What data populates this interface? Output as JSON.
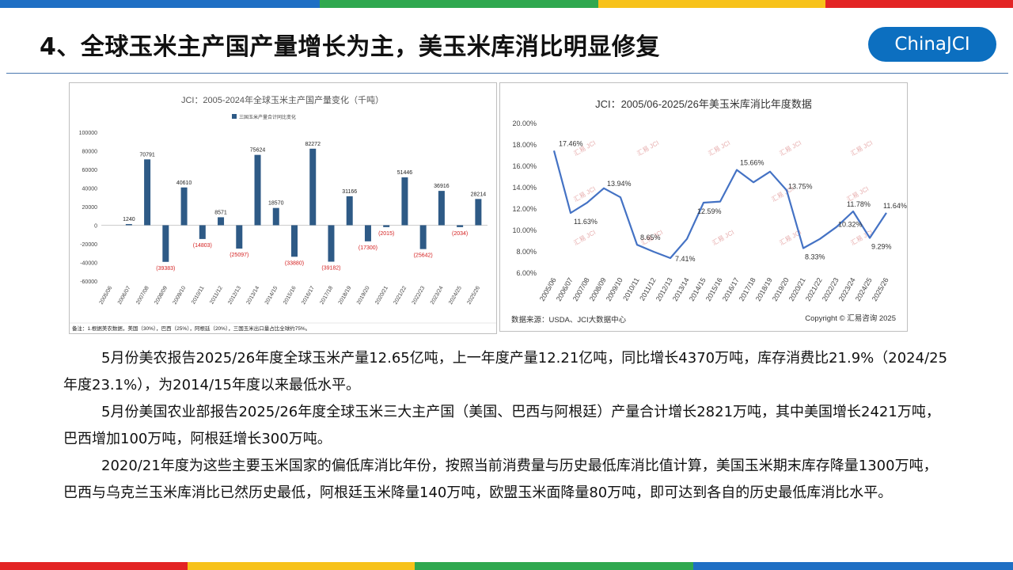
{
  "colors": {
    "strip_top": [
      "#1f6fc4",
      "#2fa84f",
      "#f7c21a",
      "#e32424"
    ],
    "strip_bottom": [
      "#e32424",
      "#f7c21a",
      "#2fa84f",
      "#1f6fc4"
    ],
    "bar": "#2e5a86",
    "line": "#4472c4",
    "negative_label": "#d42020",
    "brand": "#0c6fc0"
  },
  "header": {
    "title": "4、全球玉米主产国产量增长为主，美玉米库消比明显修复",
    "logo": "ChinaJCI"
  },
  "chart_data": [
    {
      "type": "bar",
      "title": "JCI：2005-2024年全球玉米主产国产量变化（千吨）",
      "legend": "三国玉米产量合计同比变化",
      "categories": [
        "2005/06",
        "2006/07",
        "2007/08",
        "2008/09",
        "2009/10",
        "2010/11",
        "2011/12",
        "2012/13",
        "2013/14",
        "2014/15",
        "2015/16",
        "2016/17",
        "2017/18",
        "2018/19",
        "2019/20",
        "2020/21",
        "2021/22",
        "2022/23",
        "2023/24",
        "2024/25",
        "2025/26"
      ],
      "values": [
        null,
        1240,
        70791,
        -39383,
        40610,
        -14803,
        8571,
        -25097,
        75624,
        18570,
        -33880,
        82272,
        -39182,
        31166,
        -17300,
        -2015,
        51446,
        -25642,
        36916,
        -2034,
        28214
      ],
      "data_labels": [
        "",
        "1240",
        "70791",
        "(39383)",
        "40610",
        "(14803)",
        "8571",
        "(25097)",
        "75624",
        "18570",
        "(33880)",
        "82272",
        "(39182)",
        "31166",
        "(17300)",
        "(2015)",
        "51446",
        "(25642)",
        "36916",
        "(2034)",
        "28214"
      ],
      "y_ticks": [
        "100000",
        "80000",
        "60000",
        "40000",
        "20000",
        "0",
        "-20000",
        "-40000",
        "-60000"
      ],
      "ylim": [
        -60000,
        100000
      ],
      "note": "备注：1.根据美农数据，美国（30%），巴西（25%），阿根廷（20%），三国玉米出口量占比全球约75%。"
    },
    {
      "type": "line",
      "title": "JCI：2005/06-2025/26年美玉米库消比年度数据",
      "categories": [
        "2005/06",
        "2006/07",
        "2007/08",
        "2008/09",
        "2009/10",
        "2010/11",
        "2011/12",
        "2012/13",
        "2013/14",
        "2014/15",
        "2015/16",
        "2016/17",
        "2017/18",
        "2018/19",
        "2019/20",
        "2020/21",
        "2021/22",
        "2022/23",
        "2023/24",
        "2024/25",
        "2025/26"
      ],
      "values": [
        17.46,
        11.63,
        12.6,
        13.94,
        13.1,
        8.65,
        8.0,
        7.41,
        9.2,
        12.59,
        12.7,
        15.66,
        14.5,
        15.5,
        13.75,
        8.33,
        9.2,
        10.32,
        11.78,
        9.29,
        11.64
      ],
      "point_labels": [
        {
          "index": 0,
          "text": "17.46%"
        },
        {
          "index": 1,
          "text": "11.63%"
        },
        {
          "index": 3,
          "text": "13.94%"
        },
        {
          "index": 5,
          "text": "8.65%"
        },
        {
          "index": 7,
          "text": "7.41%"
        },
        {
          "index": 9,
          "text": "12.59%"
        },
        {
          "index": 11,
          "text": "15.66%"
        },
        {
          "index": 14,
          "text": "13.75%"
        },
        {
          "index": 15,
          "text": "8.33%"
        },
        {
          "index": 17,
          "text": "10.32%"
        },
        {
          "index": 18,
          "text": "11.78%"
        },
        {
          "index": 19,
          "text": "9.29%"
        },
        {
          "index": 20,
          "text": "11.64%"
        }
      ],
      "y_ticks": [
        "20.00%",
        "18.00%",
        "16.00%",
        "14.00%",
        "12.00%",
        "10.00%",
        "8.00%",
        "6.00%"
      ],
      "ylim": [
        6,
        20
      ],
      "watermark": "汇易 JCI",
      "source": "数据来源：USDA、JCI大数据中心",
      "copyright": "Copyright © 汇易咨询 2025"
    }
  ],
  "paragraphs": [
    "5月份美农报告2025/26年度全球玉米产量12.65亿吨，上一年度产量12.21亿吨，同比增长4370万吨，库存消费比21.9%（2024/25年度23.1%），为2014/15年度以来最低水平。",
    "5月份美国农业部报告2025/26年度全球玉米三大主产国（美国、巴西与阿根廷）产量合计增长2821万吨，其中美国增长2421万吨，巴西增加100万吨，阿根廷增长300万吨。",
    "2020/21年度为这些主要玉米国家的偏低库消比年份，按照当前消费量与历史最低库消比值计算，美国玉米期末库存降量1300万吨，巴西与乌克兰玉米库消比已然历史最低，阿根廷玉米降量140万吨，欧盟玉米面降量80万吨，即可达到各自的历史最低库消比水平。"
  ]
}
